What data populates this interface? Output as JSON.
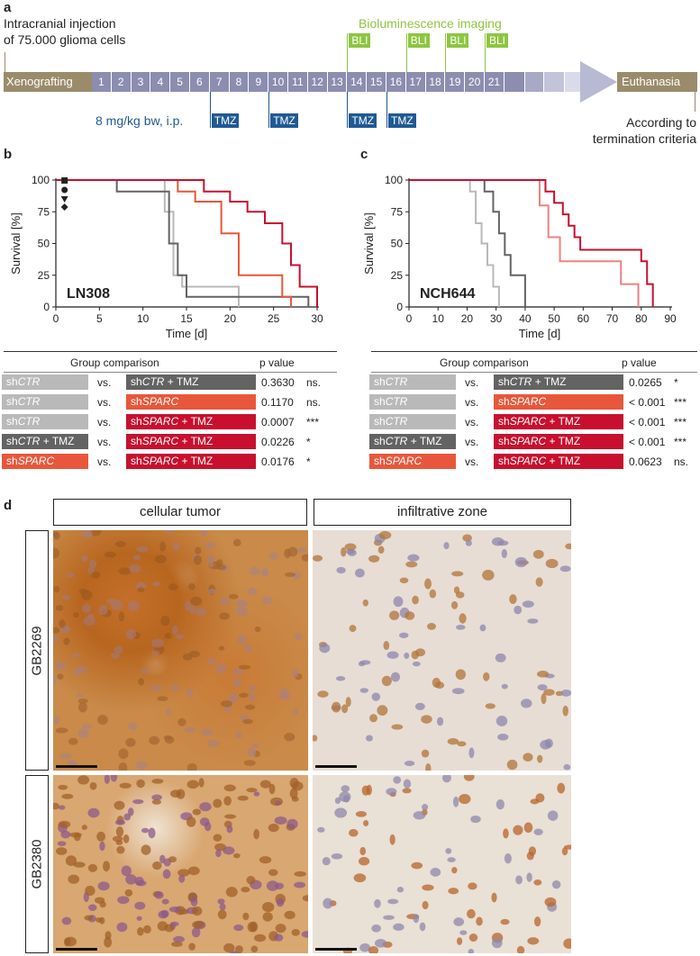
{
  "panels": {
    "a": "a",
    "b": "b",
    "c": "c",
    "d": "d"
  },
  "timeline": {
    "injection_line1": "Intracranial injection",
    "injection_line2": "of 75.000 glioma cells",
    "start_label": "Xenografting",
    "end_label": "Euthanasia",
    "days": [
      "1",
      "2",
      "3",
      "4",
      "5",
      "6",
      "7",
      "8",
      "9",
      "10",
      "11",
      "12",
      "13",
      "14",
      "15",
      "16",
      "17",
      "18",
      "19",
      "20",
      "21"
    ],
    "bli_title": "Bioluminescence imaging",
    "bli_label": "BLI",
    "bli_days": [
      14,
      17,
      19,
      21
    ],
    "tmz_dose": "8 mg/kg bw, i.p.",
    "tmz_label": "TMZ",
    "tmz_days": [
      7,
      10,
      14,
      16
    ],
    "termination_line1": "According to",
    "termination_line2": "termination criteria"
  },
  "colors": {
    "shCTR": "#b9b9b9",
    "shCTR_TMZ": "#636363",
    "shSPARC_b": "#e8573b",
    "shSPARC_TMZ": "#c8102e",
    "shSPARC_c": "#f08080",
    "bar_brown": "#9a8c6b",
    "day_purple": "#8c8daf",
    "bli_green": "#8dc63f",
    "tmz_blue": "#1f5a94"
  },
  "chart_data": [
    {
      "type": "line",
      "step": true,
      "title": "LN308",
      "xlabel": "Time [d]",
      "ylabel": "Survival [%]",
      "xlim": [
        0,
        30
      ],
      "ylim": [
        0,
        100
      ],
      "xticks": [
        "0",
        "5",
        "10",
        "15",
        "20",
        "25",
        "30"
      ],
      "yticks": [
        "0",
        "25",
        "50",
        "75",
        "100"
      ],
      "legend_markers": [
        "square",
        "circle",
        "triangle-down",
        "diamond"
      ],
      "series": [
        {
          "key": "shCTR",
          "x": [
            0,
            12.5,
            13.5,
            14.5,
            21
          ],
          "y": [
            100,
            75,
            25,
            16,
            0
          ]
        },
        {
          "key": "shCTR_TMZ",
          "x": [
            0,
            7,
            13,
            14,
            15,
            29
          ],
          "y": [
            100,
            91,
            50,
            25,
            8,
            0
          ]
        },
        {
          "key": "shSPARC",
          "x": [
            0,
            14,
            16,
            19,
            21,
            26,
            27
          ],
          "y": [
            100,
            91,
            83,
            58,
            25,
            8,
            0
          ]
        },
        {
          "key": "shSPARC_TMZ",
          "x": [
            0,
            17,
            20,
            22,
            24,
            26,
            27,
            28,
            30
          ],
          "y": [
            100,
            91,
            83,
            75,
            66,
            50,
            33,
            16,
            0
          ]
        }
      ]
    },
    {
      "type": "line",
      "step": true,
      "title": "NCH644",
      "xlabel": "Time [d]",
      "ylabel": "Survival [%]",
      "xlim": [
        0,
        90
      ],
      "ylim": [
        0,
        100
      ],
      "xticks": [
        "0",
        "10",
        "20",
        "30",
        "40",
        "50",
        "60",
        "70",
        "80",
        "90"
      ],
      "yticks": [
        "0",
        "25",
        "50",
        "75",
        "100"
      ],
      "series": [
        {
          "key": "shCTR",
          "x": [
            0,
            21,
            23,
            25,
            27,
            29,
            31
          ],
          "y": [
            100,
            91,
            66,
            50,
            33,
            16,
            0
          ]
        },
        {
          "key": "shCTR_TMZ",
          "x": [
            0,
            26,
            29,
            31,
            33,
            35,
            40
          ],
          "y": [
            100,
            91,
            75,
            58,
            41,
            25,
            0
          ]
        },
        {
          "key": "shSPARC_c",
          "x": [
            0,
            45,
            48,
            52,
            73,
            79
          ],
          "y": [
            100,
            80,
            55,
            36,
            18,
            0
          ]
        },
        {
          "key": "shSPARC_TMZ",
          "x": [
            0,
            47,
            50,
            53,
            55,
            57,
            59,
            61,
            80,
            82,
            84
          ],
          "y": [
            100,
            91,
            82,
            73,
            64,
            55,
            45,
            45,
            36,
            18,
            0
          ]
        }
      ]
    }
  ],
  "table_b": {
    "hdr_group": "Group comparison",
    "hdr_p": "p value",
    "rows": [
      {
        "l_pre": "sh",
        "l_it": "CTR",
        "l_post": "",
        "l_color": "#b9b9b9",
        "vs": "vs.",
        "r_pre": "sh",
        "r_it": "CTR",
        "r_post": " + TMZ",
        "r_color": "#636363",
        "p": "0.3630",
        "sig": "ns."
      },
      {
        "l_pre": "sh",
        "l_it": "CTR",
        "l_post": "",
        "l_color": "#b9b9b9",
        "vs": "vs.",
        "r_pre": "sh",
        "r_it": "SPARC",
        "r_post": "",
        "r_color": "#e8573b",
        "p": "0.1170",
        "sig": "ns."
      },
      {
        "l_pre": "sh",
        "l_it": "CTR",
        "l_post": "",
        "l_color": "#b9b9b9",
        "vs": "vs.",
        "r_pre": "sh",
        "r_it": "SPARC",
        "r_post": " + TMZ",
        "r_color": "#c8102e",
        "p": "0.0007",
        "sig": "***"
      },
      {
        "l_pre": "sh",
        "l_it": "CTR",
        "l_post": " + TMZ",
        "l_color": "#636363",
        "vs": "vs.",
        "r_pre": "sh",
        "r_it": "SPARC",
        "r_post": " + TMZ",
        "r_color": "#c8102e",
        "p": "0.0226",
        "sig": "*"
      },
      {
        "l_pre": "sh",
        "l_it": "SPARC",
        "l_post": "",
        "l_color": "#e8573b",
        "vs": "vs.",
        "r_pre": "sh",
        "r_it": "SPARC",
        "r_post": " + TMZ",
        "r_color": "#c8102e",
        "p": "0.0176",
        "sig": "*"
      }
    ]
  },
  "table_c": {
    "hdr_group": "Group comparison",
    "hdr_p": "p value",
    "rows": [
      {
        "l_pre": "sh",
        "l_it": "CTR",
        "l_post": "",
        "l_color": "#b9b9b9",
        "vs": "vs.",
        "r_pre": "sh",
        "r_it": "CTR",
        "r_post": " + TMZ",
        "r_color": "#636363",
        "p": "0.0265",
        "sig": "*"
      },
      {
        "l_pre": "sh",
        "l_it": "CTR",
        "l_post": "",
        "l_color": "#b9b9b9",
        "vs": "vs.",
        "r_pre": "sh",
        "r_it": "SPARC",
        "r_post": "",
        "r_color": "#e8573b",
        "p": "< 0.001",
        "sig": "***"
      },
      {
        "l_pre": "sh",
        "l_it": "CTR",
        "l_post": "",
        "l_color": "#b9b9b9",
        "vs": "vs.",
        "r_pre": "sh",
        "r_it": "SPARC",
        "r_post": " + TMZ",
        "r_color": "#c8102e",
        "p": "< 0.001",
        "sig": "***"
      },
      {
        "l_pre": "sh",
        "l_it": "CTR",
        "l_post": " + TMZ",
        "l_color": "#636363",
        "vs": "vs.",
        "r_pre": "sh",
        "r_it": "SPARC",
        "r_post": " + TMZ",
        "r_color": "#c8102e",
        "p": "< 0.001",
        "sig": "***"
      },
      {
        "l_pre": "sh",
        "l_it": "SPARC",
        "l_post": "",
        "l_color": "#e8573b",
        "vs": "vs.",
        "r_pre": "sh",
        "r_it": "SPARC",
        "r_post": " + TMZ",
        "r_color": "#c8102e",
        "p": "0.0623",
        "sig": "ns."
      }
    ]
  },
  "panel_d": {
    "col1": "cellular tumor",
    "col2": "infiltrative zone",
    "row1": "GB2269",
    "row2": "GB2380"
  }
}
